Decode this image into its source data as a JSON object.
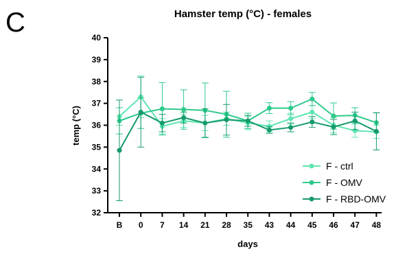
{
  "panel_label": "C",
  "chart_data": {
    "type": "line",
    "title": "Hamster temp (°C) - females",
    "xlabel": "days",
    "ylabel": "temp (°C)",
    "ylim": [
      32,
      40
    ],
    "yticks": [
      32,
      33,
      34,
      35,
      36,
      37,
      38,
      39,
      40
    ],
    "categories": [
      "B",
      "0",
      "7",
      "14",
      "21",
      "28",
      "35",
      "43",
      "44",
      "45",
      "46",
      "47",
      "48"
    ],
    "grid": false,
    "legend_position": "bottom-right",
    "series": [
      {
        "name": "F - ctrl",
        "color": "#5ee6b0",
        "values": [
          36.4,
          37.3,
          35.95,
          36.2,
          36.1,
          36.3,
          36.1,
          35.95,
          36.3,
          36.6,
          36.0,
          35.75,
          35.7
        ],
        "errors": [
          0.4,
          0.95,
          0.35,
          0.3,
          0.35,
          0.3,
          0.3,
          0.25,
          0.25,
          0.3,
          0.35,
          0.3,
          0.3
        ]
      },
      {
        "name": "F - OMV",
        "color": "#2cc98a",
        "values": [
          36.2,
          36.55,
          36.75,
          36.72,
          36.68,
          36.5,
          36.2,
          36.78,
          36.78,
          37.2,
          36.42,
          36.45,
          36.12
        ],
        "errors": [
          0.6,
          0.7,
          1.2,
          0.9,
          1.25,
          1.05,
          0.35,
          0.25,
          0.3,
          0.3,
          0.6,
          0.35,
          0.45
        ]
      },
      {
        "name": "F - RBD-OMV",
        "color": "#159a6a",
        "values": [
          34.85,
          36.6,
          36.1,
          36.35,
          36.1,
          36.25,
          36.2,
          35.78,
          35.9,
          36.15,
          35.92,
          36.2,
          35.72
        ],
        "errors": [
          2.3,
          1.6,
          0.4,
          0.25,
          0.65,
          0.7,
          0.25,
          0.15,
          0.2,
          0.25,
          0.35,
          0.4,
          0.85
        ]
      }
    ]
  }
}
